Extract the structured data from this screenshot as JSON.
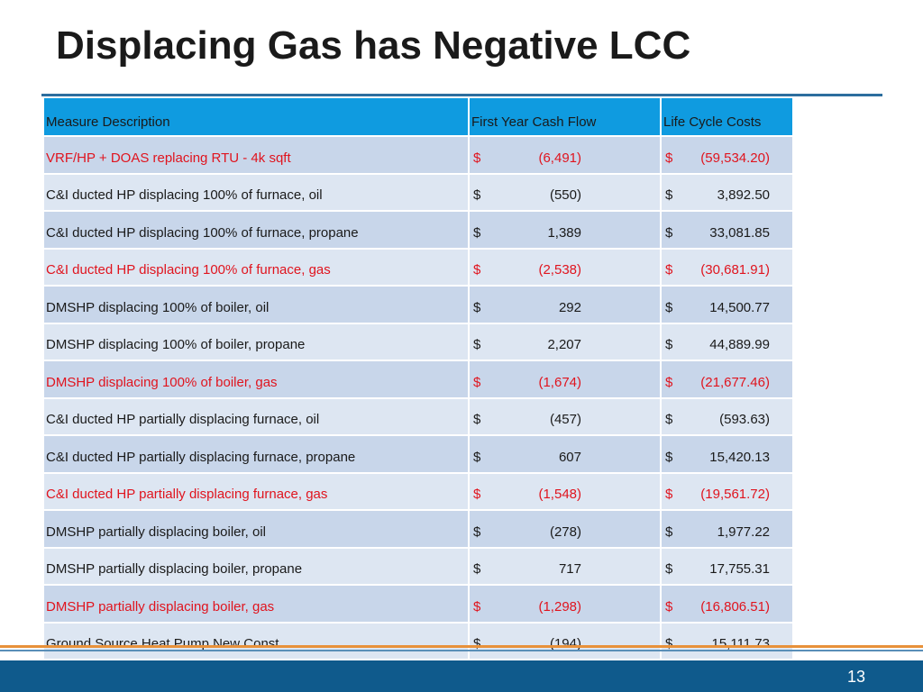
{
  "slide": {
    "title": "Displacing Gas has Negative LCC",
    "page_number": "13"
  },
  "table": {
    "headers": [
      "Measure Description",
      "First Year Cash Flow",
      "Life Cycle Costs"
    ],
    "rows": [
      {
        "desc": "VRF/HP + DOAS replacing RTU - 4k sqft",
        "fy_sym": "$",
        "fy": "(6,491)",
        "lcc_sym": "$",
        "lcc": "(59,534.20)",
        "highlight": true
      },
      {
        "desc": "C&I ducted HP displacing 100% of furnace, oil",
        "fy_sym": "$",
        "fy": "(550)",
        "lcc_sym": "$",
        "lcc": "3,892.50",
        "highlight": false
      },
      {
        "desc": "C&I ducted HP displacing 100% of furnace, propane",
        "fy_sym": "$",
        "fy": "1,389",
        "lcc_sym": "$",
        "lcc": "33,081.85",
        "highlight": false
      },
      {
        "desc": "C&I ducted HP displacing 100% of furnace, gas",
        "fy_sym": "$",
        "fy": "(2,538)",
        "lcc_sym": "$",
        "lcc": "(30,681.91)",
        "highlight": true
      },
      {
        "desc": "DMSHP displacing 100% of boiler, oil",
        "fy_sym": "$",
        "fy": "292",
        "lcc_sym": "$",
        "lcc": "14,500.77",
        "highlight": false
      },
      {
        "desc": "DMSHP displacing 100% of boiler, propane",
        "fy_sym": "$",
        "fy": "2,207",
        "lcc_sym": "$",
        "lcc": "44,889.99",
        "highlight": false
      },
      {
        "desc": "DMSHP displacing 100% of boiler, gas",
        "fy_sym": "$",
        "fy": "(1,674)",
        "lcc_sym": "$",
        "lcc": "(21,677.46)",
        "highlight": true
      },
      {
        "desc": "C&I ducted HP partially displacing furnace, oil",
        "fy_sym": "$",
        "fy": "(457)",
        "lcc_sym": "$",
        "lcc": "(593.63)",
        "highlight": false
      },
      {
        "desc": "C&I ducted HP partially displacing furnace, propane",
        "fy_sym": "$",
        "fy": "607",
        "lcc_sym": "$",
        "lcc": "15,420.13",
        "highlight": false
      },
      {
        "desc": "C&I ducted HP partially displacing furnace, gas",
        "fy_sym": "$",
        "fy": "(1,548)",
        "lcc_sym": "$",
        "lcc": "(19,561.72)",
        "highlight": true
      },
      {
        "desc": "DMSHP partially displacing boiler, oil",
        "fy_sym": "$",
        "fy": "(278)",
        "lcc_sym": "$",
        "lcc": "1,977.22",
        "highlight": false
      },
      {
        "desc": "DMSHP partially displacing boiler, propane",
        "fy_sym": "$",
        "fy": "717",
        "lcc_sym": "$",
        "lcc": "17,755.31",
        "highlight": false
      },
      {
        "desc": "DMSHP partially displacing boiler, gas",
        "fy_sym": "$",
        "fy": "(1,298)",
        "lcc_sym": "$",
        "lcc": "(16,806.51)",
        "highlight": true
      },
      {
        "desc": "Ground Source Heat Pump New Const.",
        "fy_sym": "$",
        "fy": "(194)",
        "lcc_sym": "$",
        "lcc": "15,111.73",
        "highlight": false
      }
    ]
  },
  "colors": {
    "header_bg": "#0f9be0",
    "highlight_text": "#e0141e",
    "footer_band": "#0f5a8c"
  }
}
